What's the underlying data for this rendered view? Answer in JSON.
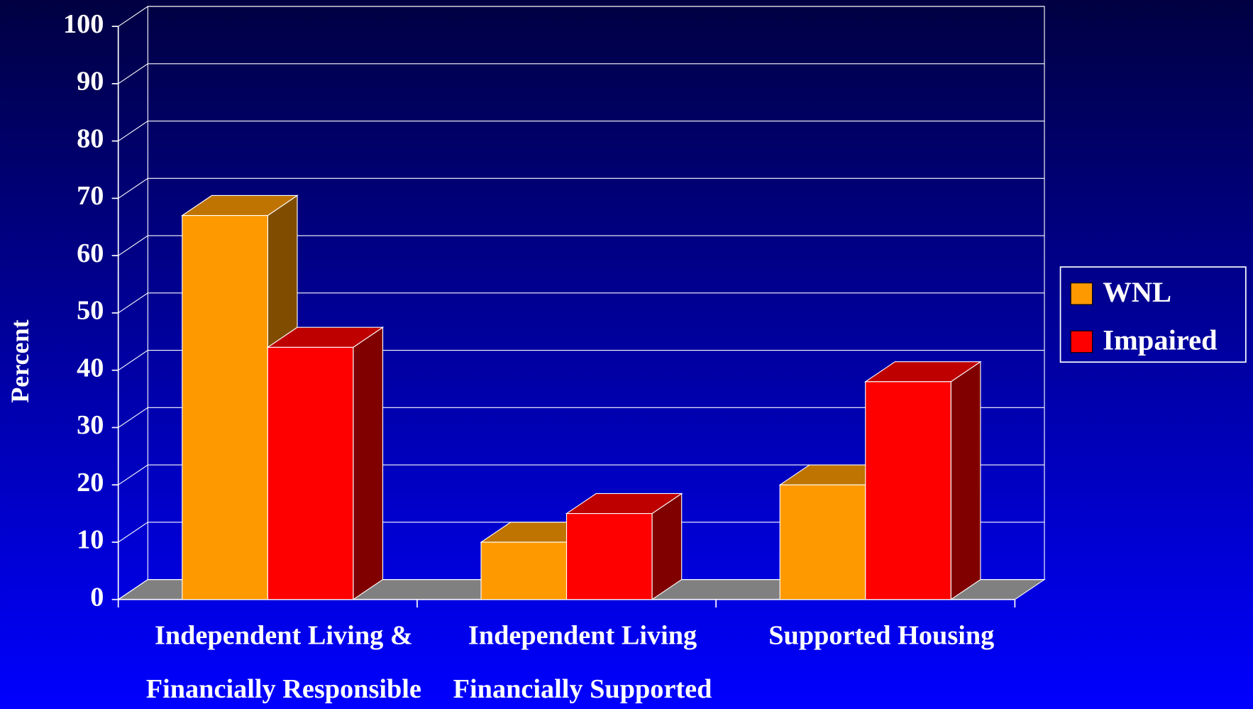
{
  "chart_data": {
    "type": "bar3d",
    "y_label": "Percent",
    "categories": [
      [
        "Independent Living &",
        "Financially Responsible"
      ],
      [
        "Independent Living",
        "Financially Supported"
      ],
      [
        "Supported Housing"
      ]
    ],
    "series": [
      {
        "name": "WNL",
        "color": "#ff9900",
        "values": [
          67,
          10,
          20
        ]
      },
      {
        "name": "Impaired",
        "color": "#ff0000",
        "values": [
          44,
          15,
          38
        ]
      }
    ],
    "ylim": [
      0,
      100
    ],
    "yticks": [
      0,
      10,
      20,
      30,
      40,
      50,
      60,
      70,
      80,
      90,
      100
    ],
    "grid": true,
    "legend": "right"
  }
}
